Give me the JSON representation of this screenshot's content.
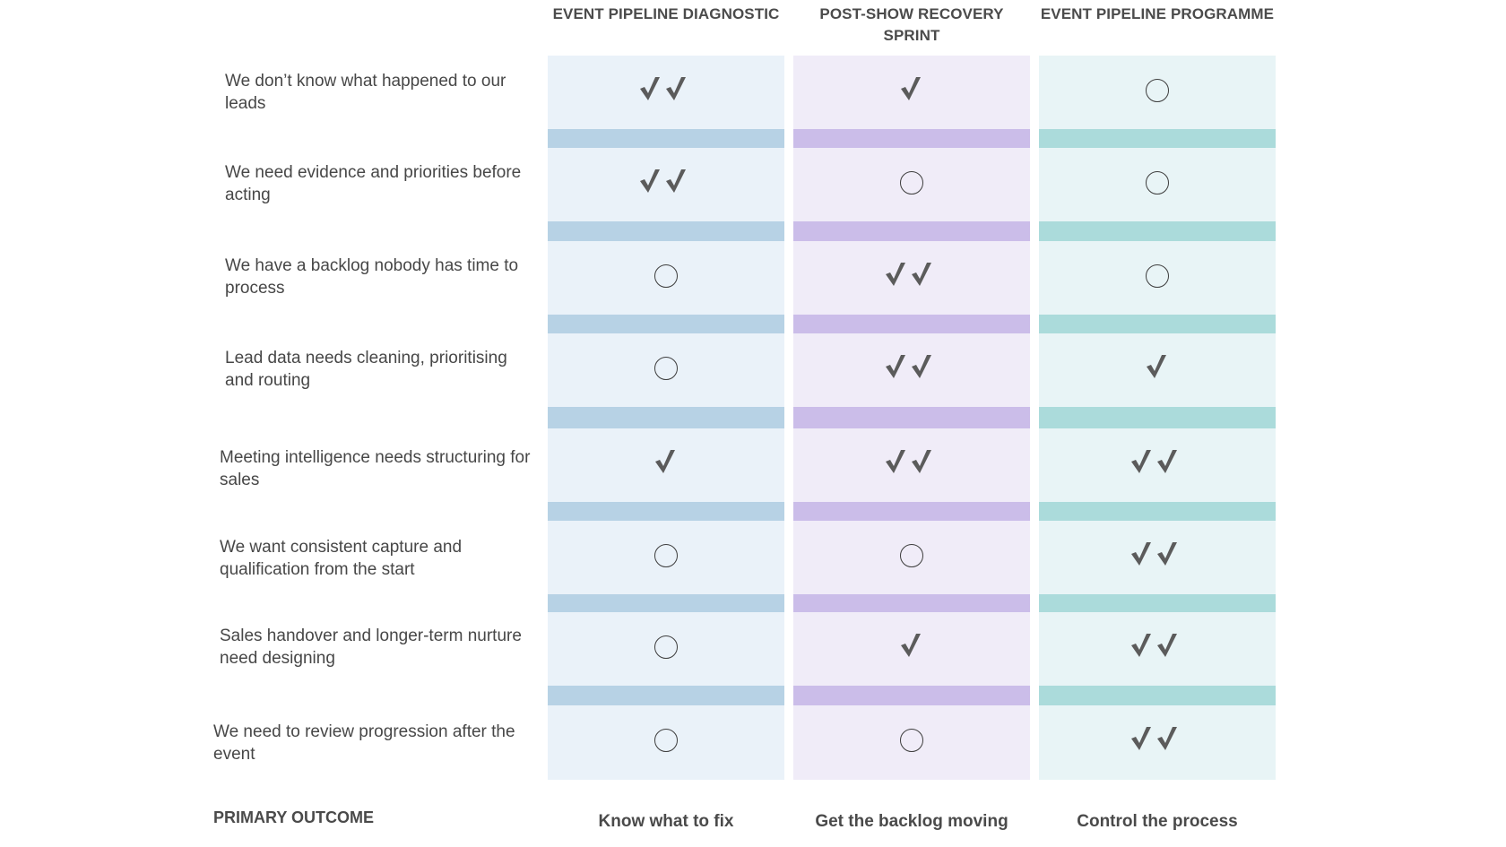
{
  "columns": [
    {
      "title": "EVENT PIPELINE DIAGNOSTIC",
      "outcome": "Know what to fix"
    },
    {
      "title": "POST-SHOW RECOVERY SPRINT",
      "outcome": "Get the backlog moving"
    },
    {
      "title": "EVENT PIPELINE PROGRAMME",
      "outcome": "Control the process"
    }
  ],
  "rows": [
    {
      "label": "We don’t know what happened to our leads",
      "marks": [
        "double",
        "single",
        "none"
      ]
    },
    {
      "label": "We need evidence and priorities before acting",
      "marks": [
        "double",
        "none",
        "none"
      ]
    },
    {
      "label": "We have a backlog nobody has time to process",
      "marks": [
        "none",
        "double",
        "none"
      ]
    },
    {
      "label": "Lead data needs cleaning, prioritising and routing",
      "marks": [
        "none",
        "double",
        "single"
      ]
    },
    {
      "label": "Meeting intelligence needs structuring for sales",
      "marks": [
        "single",
        "double",
        "double"
      ]
    },
    {
      "label": "We want consistent capture and qualification from the start",
      "marks": [
        "none",
        "none",
        "double"
      ]
    },
    {
      "label": "Sales handover and longer-term nurture need designing",
      "marks": [
        "none",
        "single",
        "double"
      ]
    },
    {
      "label": "We need to review progression after the event",
      "marks": [
        "none",
        "none",
        "double"
      ]
    }
  ],
  "footer": {
    "label": "PRIMARY OUTCOME"
  },
  "legend_icons": {
    "double": "double-check-icon",
    "single": "check-icon",
    "none": "empty-circle-icon"
  },
  "colors": {
    "col1_bg": "#eaf2f9",
    "col1_band": "#b7d2e5",
    "col2_bg": "#f0ecf8",
    "col2_band": "#cbbde9",
    "col3_bg": "#e8f4f6",
    "col3_band": "#abdbdb",
    "mark": "#5b5b5b"
  }
}
